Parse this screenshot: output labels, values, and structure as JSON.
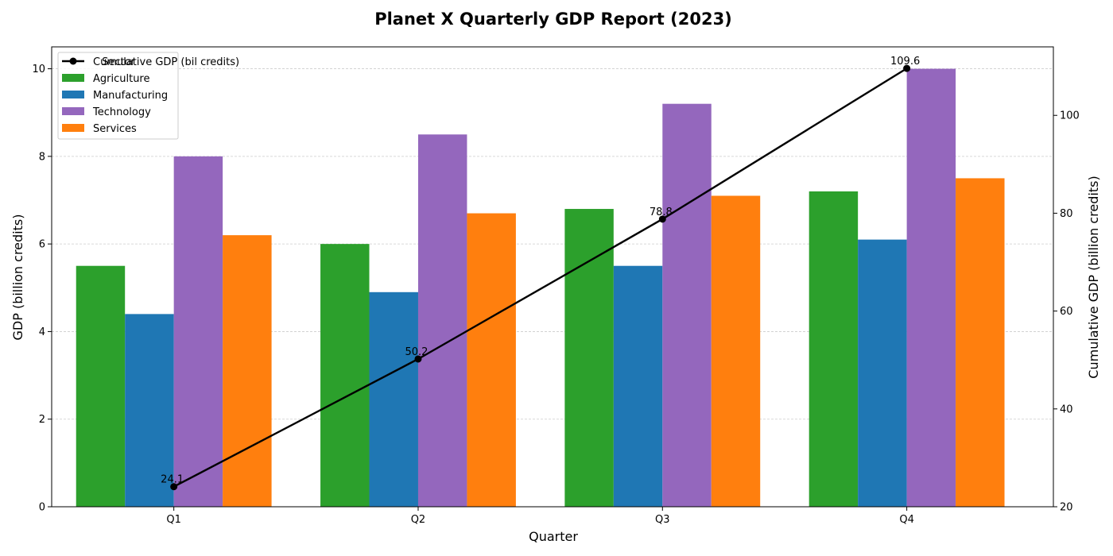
{
  "chart_data": {
    "type": "bar",
    "title": "Planet X Quarterly GDP Report (2023)",
    "xlabel": "Quarter",
    "ylabel": "GDP (billion credits)",
    "y2label": "Cumulative GDP (billion credits)",
    "categories": [
      "Q1",
      "Q2",
      "Q3",
      "Q4"
    ],
    "ylim": [
      0,
      10.5
    ],
    "y_ticks": [
      0,
      2,
      4,
      6,
      8,
      10
    ],
    "y2lim": [
      20,
      114
    ],
    "y2_ticks": [
      20,
      40,
      60,
      80,
      100
    ],
    "grid": true,
    "legend_title": "Sector",
    "legend_position": "top-left",
    "series": [
      {
        "name": "Agriculture",
        "color": "#2ca02c",
        "values": [
          5.5,
          6.0,
          6.8,
          7.2
        ]
      },
      {
        "name": "Manufacturing",
        "color": "#1f77b4",
        "values": [
          4.4,
          4.9,
          5.5,
          6.1
        ]
      },
      {
        "name": "Technology",
        "color": "#9467bd",
        "values": [
          8.0,
          8.5,
          9.2,
          10.0
        ]
      },
      {
        "name": "Services",
        "color": "#ff7f0e",
        "values": [
          6.2,
          6.7,
          7.1,
          7.5
        ]
      }
    ],
    "line_series": {
      "name": "Cumulative GDP (bil credits)",
      "color": "#000000",
      "axis": "secondary",
      "values": [
        24.1,
        50.2,
        78.8,
        109.6
      ],
      "labels": [
        "24.1",
        "50.2",
        "78.8",
        "109.6"
      ]
    }
  }
}
